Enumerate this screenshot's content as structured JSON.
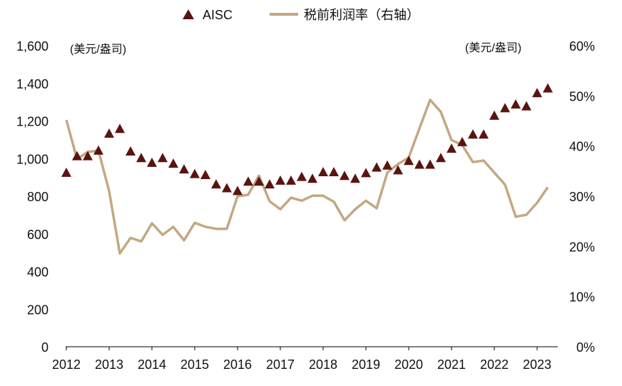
{
  "chart_data": {
    "type": "line+scatter",
    "legend_position": "top",
    "grid": false,
    "left_axis": {
      "unit_label": "(美元/盎司)",
      "ylim": [
        0,
        1600
      ],
      "ticks": [
        "0",
        "200",
        "400",
        "600",
        "800",
        "1,000",
        "1,200",
        "1,400",
        "1,600"
      ]
    },
    "right_axis": {
      "unit_label": "(美元/盎司)",
      "ylim": [
        0,
        60
      ],
      "ticks": [
        "0%",
        "10%",
        "20%",
        "30%",
        "40%",
        "50%",
        "60%"
      ]
    },
    "x_ticks": [
      "2012",
      "2013",
      "2014",
      "2015",
      "2016",
      "2017",
      "2018",
      "2019",
      "2020",
      "2021",
      "2022",
      "2023"
    ],
    "x_start": 2012,
    "x_step_per_year": 4,
    "series": [
      {
        "name": "AISC",
        "axis": "left",
        "kind": "scatter-triangle",
        "color": "#5a1410",
        "values": [
          922,
          1010,
          1010,
          1040,
          1130,
          1155,
          1035,
          1000,
          975,
          1000,
          970,
          940,
          915,
          910,
          860,
          840,
          825,
          875,
          875,
          860,
          880,
          880,
          900,
          890,
          925,
          925,
          905,
          890,
          920,
          950,
          960,
          935,
          985,
          965,
          965,
          1000,
          1050,
          1085,
          1125,
          1125,
          1225,
          1265,
          1285,
          1275,
          1345,
          1370
        ]
      },
      {
        "name": "税前利润率（右轴）",
        "axis": "right",
        "kind": "line",
        "color": "#c4a882",
        "values": [
          45.2,
          37.4,
          38.8,
          39.1,
          31.0,
          18.6,
          21.7,
          21.0,
          24.6,
          22.3,
          23.9,
          21.2,
          24.7,
          23.9,
          23.5,
          23.5,
          30.0,
          30.3,
          34.1,
          29.0,
          27.4,
          29.7,
          29.1,
          30.1,
          30.1,
          28.9,
          25.2,
          27.4,
          29.1,
          27.6,
          34.7,
          36.4,
          37.7,
          43.5,
          49.2,
          46.8,
          41.2,
          40.2,
          36.8,
          37.1,
          34.7,
          32.3,
          25.9,
          26.3,
          28.7,
          31.8
        ]
      }
    ]
  }
}
